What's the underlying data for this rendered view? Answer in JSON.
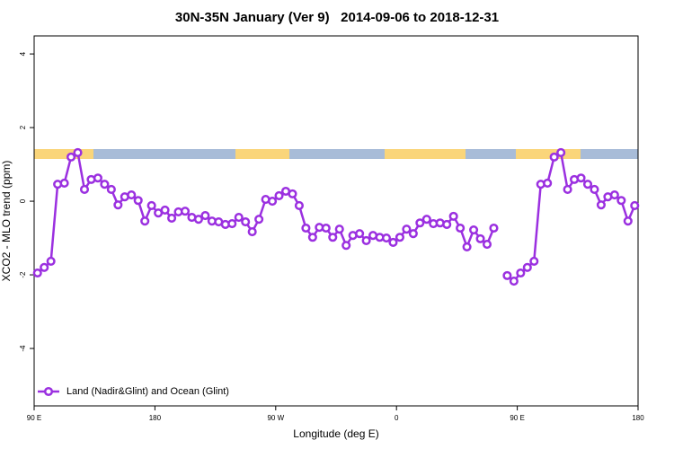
{
  "chart_data": {
    "type": "line",
    "title": "30N-35N January (Ver 9)   2014-09-06 to 2018-12-31",
    "x_label": "Longitude (deg E)",
    "y_label": "XCO2 - MLO trend (ppm)",
    "xlim": [
      90,
      540
    ],
    "ylim": [
      -5.56,
      4.49
    ],
    "xticks": [
      {
        "value": 90,
        "label": "90 E"
      },
      180,
      {
        "value": 270,
        "label": "90 W"
      },
      {
        "value": 360,
        "label": "0"
      },
      {
        "value": 450,
        "label": "90 E"
      },
      {
        "value": 540,
        "label": "180"
      }
    ],
    "yticks": [
      -4,
      -2,
      0,
      2,
      4
    ],
    "legend": "bottom-left",
    "x": [
      92.5,
      97.5,
      102.5,
      107.5,
      112.5,
      117.5,
      122.5,
      127.5,
      132.5,
      137.5,
      142.5,
      147.5,
      152.5,
      157.5,
      162.5,
      167.5,
      172.5,
      177.5,
      182.5,
      187.5,
      192.5,
      197.5,
      202.5,
      207.5,
      212.5,
      217.5,
      222.5,
      227.5,
      232.5,
      237.5,
      242.5,
      247.5,
      252.5,
      257.5,
      262.5,
      267.5,
      272.5,
      277.5,
      282.5,
      287.5,
      292.5,
      297.5,
      302.5,
      307.5,
      312.5,
      317.5,
      322.5,
      327.5,
      332.5,
      337.5,
      342.5,
      347.5,
      352.5,
      357.5,
      362.5,
      367.5,
      372.5,
      377.5,
      382.5,
      387.5,
      392.5,
      397.5,
      402.5,
      407.5,
      412.5,
      417.5,
      422.5,
      427.5,
      432.5,
      437.5,
      442.5,
      447.5,
      452.5,
      457.5,
      462.5,
      467.5,
      472.5,
      477.5,
      482.5,
      487.5,
      492.5,
      497.5,
      502.5,
      507.5,
      512.5,
      517.5,
      522.5,
      527.5,
      532.5,
      537.5
    ],
    "series": [
      {
        "name": "Land (Nadir&Glint) and Ocean (Glint)",
        "color": "#9b30e0",
        "values": [
          -1.95,
          -1.8,
          -1.63,
          0.46,
          0.49,
          1.2,
          1.32,
          0.32,
          0.59,
          0.63,
          0.46,
          0.32,
          -0.1,
          0.12,
          0.17,
          0.02,
          -0.54,
          -0.12,
          -0.32,
          -0.24,
          -0.46,
          -0.29,
          -0.27,
          -0.44,
          -0.49,
          -0.39,
          -0.54,
          -0.56,
          -0.63,
          -0.61,
          -0.44,
          -0.56,
          -0.83,
          -0.49,
          0.05,
          0,
          0.15,
          0.27,
          0.2,
          -0.12,
          -0.73,
          -0.98,
          -0.71,
          -0.73,
          -0.98,
          -0.76,
          -1.2,
          -0.93,
          -0.88,
          -1.07,
          -0.93,
          -0.98,
          -1.0,
          -1.12,
          -0.98,
          -0.76,
          -0.88,
          -0.59,
          -0.49,
          -0.61,
          -0.59,
          -0.63,
          -0.41,
          -0.73,
          -1.24,
          -0.78,
          -1.02,
          -1.17,
          -0.73,
          null,
          -2.02,
          -2.17,
          -1.95,
          -1.8,
          -1.63,
          0.46,
          0.49,
          1.2,
          1.32,
          0.32,
          0.59,
          0.63,
          0.46,
          0.32,
          -0.1,
          0.12,
          0.17,
          0.02,
          -0.54,
          -0.12
        ]
      }
    ]
  }
}
